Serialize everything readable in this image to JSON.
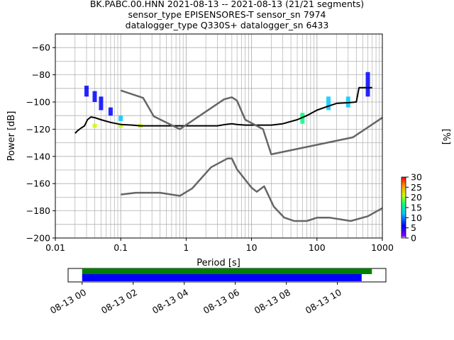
{
  "header": {
    "line1": "BK.PABC.00.HNN   2021-08-13 -- 2021-08-13  (21/21 segments)",
    "line2": "sensor_type EPISENSORES-T sensor_sn 7974",
    "line3": "datalogger_type Q330S+ datalogger_sn 6433"
  },
  "colorbar": {
    "label": "[%]",
    "ticks": [
      "0",
      "5",
      "10",
      "15",
      "20",
      "25",
      "30"
    ],
    "vmin": 0,
    "vmax": 30
  },
  "timeline": {
    "ticks": [
      "08-13 00",
      "08-13 02",
      "08-13 04",
      "08-13 06",
      "08-13 08",
      "08-13 10"
    ],
    "tick_hours": [
      0,
      2,
      4,
      6,
      8,
      10
    ],
    "start_hour": -0.55,
    "end_hour": 11.9,
    "bars": [
      {
        "color": "#008000",
        "from_hour": 0,
        "to_hour": 11.35
      },
      {
        "color": "#0000ff",
        "from_hour": 0,
        "to_hour": 10.95
      }
    ]
  },
  "chart_data": {
    "type": "line",
    "xlabel": "Period [s]",
    "ylabel": "Power [dB]",
    "xscale": "log",
    "xlim": [
      0.01,
      1000
    ],
    "ylim": [
      -200,
      -50
    ],
    "xticks": [
      "0.01",
      "0.1",
      "1",
      "10",
      "100",
      "1000"
    ],
    "yticks": [
      "−200",
      "−180",
      "−160",
      "−140",
      "−120",
      "−100",
      "−80",
      "−60"
    ],
    "grid": true,
    "series": [
      {
        "role": "mean",
        "color": "#000000",
        "points": [
          [
            0.02,
            -123
          ],
          [
            0.022,
            -121
          ],
          [
            0.025,
            -119
          ],
          [
            0.028,
            -117.5
          ],
          [
            0.031,
            -113
          ],
          [
            0.035,
            -111
          ],
          [
            0.04,
            -111.5
          ],
          [
            0.05,
            -113
          ],
          [
            0.07,
            -115
          ],
          [
            0.1,
            -116.5
          ],
          [
            0.15,
            -117
          ],
          [
            0.2,
            -117.5
          ],
          [
            0.4,
            -117.5
          ],
          [
            0.8,
            -117.5
          ],
          [
            2,
            -117.5
          ],
          [
            3,
            -117.5
          ],
          [
            4,
            -116.5
          ],
          [
            5,
            -116
          ],
          [
            6,
            -116.5
          ],
          [
            8,
            -117
          ],
          [
            12,
            -117
          ],
          [
            20,
            -117
          ],
          [
            30,
            -116
          ],
          [
            50,
            -113
          ],
          [
            70,
            -110
          ],
          [
            100,
            -106
          ],
          [
            150,
            -103
          ],
          [
            200,
            -101
          ],
          [
            300,
            -100.5
          ],
          [
            400,
            -100
          ],
          [
            440,
            -89.5
          ],
          [
            700,
            -89.5
          ]
        ]
      },
      {
        "role": "noise-model-high",
        "color": "#666666",
        "points": [
          [
            0.1,
            -91.5
          ],
          [
            0.22,
            -97
          ],
          [
            0.32,
            -110.5
          ],
          [
            0.8,
            -120
          ],
          [
            3.8,
            -98
          ],
          [
            5,
            -96.5
          ],
          [
            6,
            -99
          ],
          [
            8,
            -113
          ],
          [
            15,
            -120
          ],
          [
            20,
            -138.5
          ],
          [
            354,
            -126
          ],
          [
            1000,
            -111.5
          ]
        ]
      },
      {
        "role": "noise-model-low",
        "color": "#666666",
        "points": [
          [
            0.1,
            -168
          ],
          [
            0.17,
            -166.7
          ],
          [
            0.4,
            -166.7
          ],
          [
            0.8,
            -169
          ],
          [
            1.24,
            -163.5
          ],
          [
            2.4,
            -148
          ],
          [
            4.3,
            -141.5
          ],
          [
            5,
            -141.5
          ],
          [
            6,
            -149.5
          ],
          [
            10,
            -163
          ],
          [
            12,
            -166
          ],
          [
            15.6,
            -162
          ],
          [
            21.9,
            -177
          ],
          [
            31.6,
            -185
          ],
          [
            45,
            -187.5
          ],
          [
            70,
            -187.5
          ],
          [
            101,
            -185
          ],
          [
            154,
            -185
          ],
          [
            328,
            -187.5
          ],
          [
            600,
            -184
          ],
          [
            1000,
            -178
          ]
        ]
      }
    ],
    "pdf_scatter": [
      {
        "period": 0.03,
        "db_min": -96,
        "db_max": -88,
        "pct": 5
      },
      {
        "period": 0.04,
        "db_min": -100,
        "db_max": -92,
        "pct": 5
      },
      {
        "period": 0.05,
        "db_min": -106,
        "db_max": -96,
        "pct": 5
      },
      {
        "period": 0.07,
        "db_min": -110,
        "db_max": -104,
        "pct": 5
      },
      {
        "period": 0.1,
        "db_min": -114,
        "db_max": -110,
        "pct": 8
      },
      {
        "period": 0.04,
        "db_min": -119,
        "db_max": -116,
        "pct": 20
      },
      {
        "period": 0.1,
        "db_min": -119,
        "db_max": -116,
        "pct": 22
      },
      {
        "period": 0.2,
        "db_min": -119,
        "db_max": -116,
        "pct": 18
      },
      {
        "period": 60,
        "db_min": -116,
        "db_max": -108,
        "pct": 15
      },
      {
        "period": 150,
        "db_min": -106,
        "db_max": -96,
        "pct": 10
      },
      {
        "period": 300,
        "db_min": -104,
        "db_max": -96,
        "pct": 10
      },
      {
        "period": 600,
        "db_min": -96,
        "db_max": -78,
        "pct": 5
      }
    ]
  }
}
